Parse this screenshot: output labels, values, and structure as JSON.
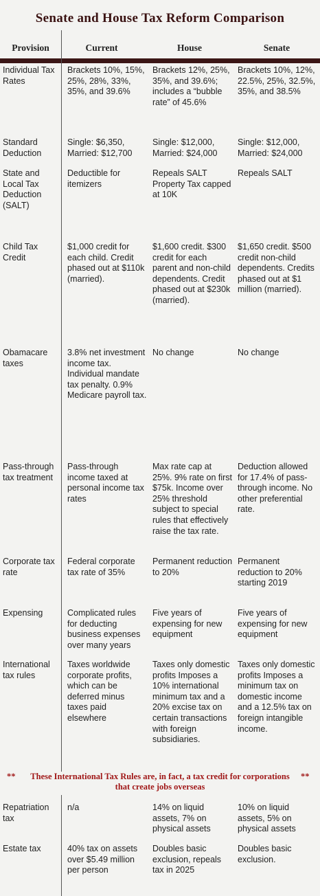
{
  "title": "Senate and House Tax Reform Comparison",
  "table": {
    "columns": [
      "Provision",
      "Current",
      "House",
      "Senate"
    ],
    "rows": [
      [
        "Individual Tax Rates",
        "Brackets 10%, 15%, 25%, 28%, 33%, 35%, and 39.6%",
        "Brackets 12%, 25%, 35%, and 39.6%; includes a “bubble rate” of 45.6%",
        "Brackets 10%, 12%, 22.5%, 25%, 32.5%, 35%, and 38.5%"
      ],
      [
        "Standard Deduction",
        "Single: $6,350, Married: $12,700",
        "Single: $12,000, Married: $24,000",
        "Single: $12,000, Married: $24,000"
      ],
      [
        "State and Local Tax Deduction (SALT)",
        "Deductible for itemizers",
        "Repeals SALT Property Tax capped at 10K",
        "Repeals SALT"
      ],
      [
        "Child Tax Credit",
        "$1,000 credit for each child. Credit phased out at $110k (married).",
        "$1,600 credit. $300 credit for each parent and non-child dependents. Credit phased out at $230k (married).",
        "$1,650 credit. $500 credit non-child dependents. Credits phased out at $1 million (married)."
      ],
      [
        "Obamacare taxes",
        "3.8% net investment income tax. Individual mandate tax penalty. 0.9% Medicare payroll tax.",
        "No change",
        "No change"
      ],
      [
        "Pass-through tax treatment",
        "Pass-through income taxed at personal income tax rates",
        "Max rate cap at 25%. 9% rate on first $75k. Income over 25% threshold subject to special rules that effectively raise the tax rate.",
        "Deduction allowed for 17.4% of pass-through income. No other preferential rate."
      ],
      [
        "Corporate tax rate",
        "Federal corporate tax rate of 35%",
        "Permanent reduction to 20%",
        "Permanent reduction to 20% starting 2019"
      ],
      [
        "Expensing",
        "Complicated rules for deducting business expenses over many years",
        "Five years of expensing for new equipment",
        "Five years of expensing for new equipment"
      ],
      [
        "International tax rules",
        "Taxes worldwide corporate profits, which can be deferred minus taxes paid elsewhere",
        "Taxes only domestic profits Imposes a 10% international minimum tax and a 20% excise tax on certain transactions with foreign subsidiaries.",
        "Taxes only domestic profits Imposes a minimum tax on domestic income and a 12.5% tax on foreign intangible income."
      ],
      [
        "Repatriation tax",
        "n/a",
        "14% on liquid assets, 7% on physical assets",
        "10% on liquid assets, 5% on physical assets"
      ],
      [
        "Estate tax",
        "40% tax on assets over $5.49 million per person",
        "Doubles basic exclusion, repeals tax in 2025",
        "Doubles basic exclusion."
      ]
    ]
  },
  "note": {
    "markers": [
      "**",
      "**"
    ],
    "text": "These International Tax Rules are, in fact, a tax credit for corporations that create jobs overseas"
  }
}
